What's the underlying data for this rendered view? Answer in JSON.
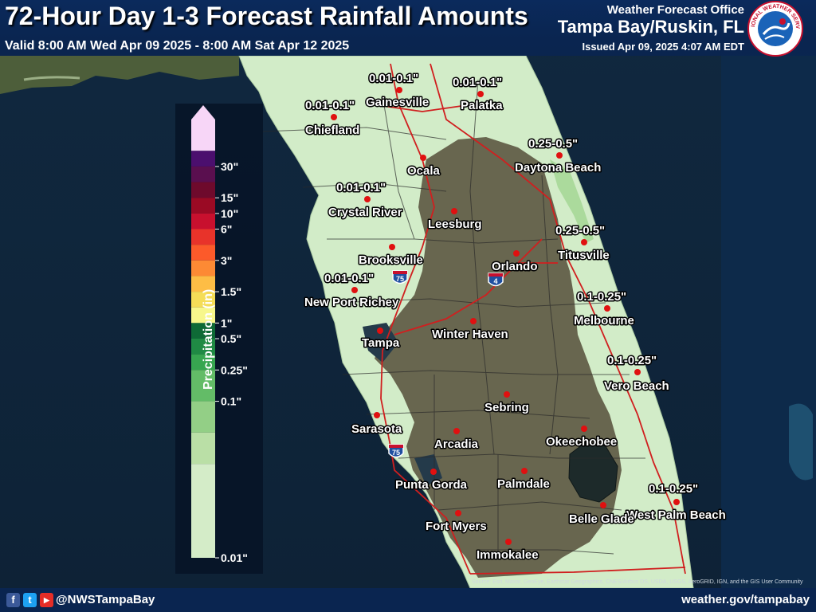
{
  "header": {
    "title": "72-Hour Day 1-3 Forecast Rainfall Amounts",
    "valid": "Valid 8:00 AM Wed Apr 09 2025 - 8:00 AM Sat Apr 12 2025",
    "office_line": "Weather Forecast Office",
    "office_name": "Tampa Bay/Ruskin, FL",
    "issued": "Issued Apr 09, 2025 4:07 AM EDT",
    "logo_text": "NATIONAL WEATHER SERVICE"
  },
  "legend": {
    "axis_label": "Precipitation (in)",
    "ticks": [
      "30\"",
      "15\"",
      "10\"",
      "6\"",
      "3\"",
      "1.5\"",
      "1\"",
      "0.5\"",
      "0.25\"",
      "0.1\"",
      "0.01\""
    ],
    "colors": [
      "#f7d6f7",
      "#4b0f6e",
      "#5a0f4f",
      "#6e0a2c",
      "#9a0a24",
      "#c8102e",
      "#e8332a",
      "#fc5a2a",
      "#fd8a34",
      "#fdbd45",
      "#f5dd57",
      "#f7f78b",
      "#0e6a36",
      "#1f8a44",
      "#37a650",
      "#63bc67",
      "#93cf86",
      "#badfa6",
      "#d4ecc8"
    ]
  },
  "icons": {
    "arrow": "triangle-up-icon",
    "city": "red-dot-icon",
    "logo": "nws-logo-icon"
  },
  "cities": [
    {
      "name": "Gainesville",
      "label": "0.01-0.1\""
    },
    {
      "name": "Palatka",
      "label": "0.01-0.1\""
    },
    {
      "name": "Chiefland",
      "label": "0.01-0.1\""
    },
    {
      "name": "Ocala",
      "label": ""
    },
    {
      "name": "Daytona Beach",
      "label": "0.25-0.5\""
    },
    {
      "name": "Crystal River",
      "label": "0.01-0.1\""
    },
    {
      "name": "Leesburg",
      "label": ""
    },
    {
      "name": "Titusville",
      "label": "0.25-0.5\""
    },
    {
      "name": "Brooksville",
      "label": ""
    },
    {
      "name": "Orlando",
      "label": ""
    },
    {
      "name": "New Port Richey",
      "label": "0.01-0.1\""
    },
    {
      "name": "Melbourne",
      "label": "0.1-0.25\""
    },
    {
      "name": "Winter Haven",
      "label": ""
    },
    {
      "name": "Tampa",
      "label": ""
    },
    {
      "name": "Vero Beach",
      "label": "0.1-0.25\""
    },
    {
      "name": "Sebring",
      "label": ""
    },
    {
      "name": "Sarasota",
      "label": ""
    },
    {
      "name": "Arcadia",
      "label": ""
    },
    {
      "name": "Okeechobee",
      "label": ""
    },
    {
      "name": "Punta Gorda",
      "label": ""
    },
    {
      "name": "Palmdale",
      "label": ""
    },
    {
      "name": "West Palm Beach",
      "label": "0.1-0.25\""
    },
    {
      "name": "Belle Glade",
      "label": ""
    },
    {
      "name": "Fort Myers",
      "label": ""
    },
    {
      "name": "Immokalee",
      "label": ""
    }
  ],
  "shields": [
    "75",
    "4",
    "75"
  ],
  "footer": {
    "social": [
      "f",
      "t",
      "▶"
    ],
    "handle": "@NWSTampaBay",
    "website": "weather.gov/tampabay",
    "credits": "Source: Esri, Maxar, GeoEye, Earthstar Geographics, CNES/Airbus DS, USDA, USGS, AeroGRID, IGN, and the GIS User Community"
  },
  "colors": {
    "sea": "#0f2a44",
    "land_dark": "#5a5440",
    "land_light": "#d2ecc8",
    "land_mid": "#a9d99a",
    "roads": "#d01f1f",
    "county_lines": "#1c1c1c",
    "header_bg": "#0a2550"
  }
}
